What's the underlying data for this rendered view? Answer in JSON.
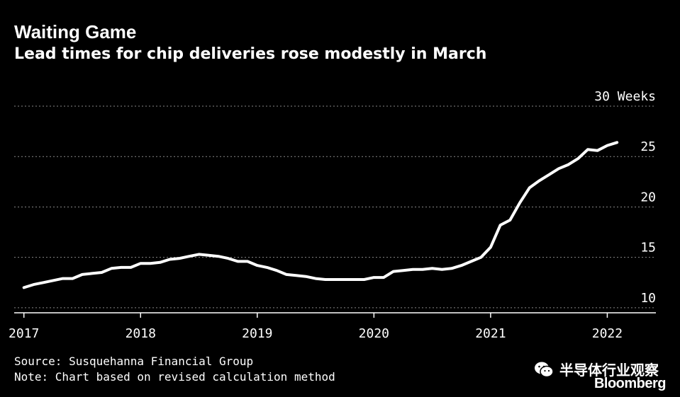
{
  "title": "Waiting Game",
  "subtitle": "Lead times for chip deliveries rose modestly in March",
  "source": "Source: Susquehanna Financial Group",
  "note": "Note: Chart based on revised calculation method",
  "watermark": "半导体行业观察",
  "brand": "Bloomberg",
  "colors": {
    "background": "#000000",
    "line": "#ffffff",
    "grid": "#888888"
  },
  "chart_data": {
    "type": "line",
    "title": "Waiting Game",
    "subtitle": "Lead times for chip deliveries rose modestly in March",
    "xlabel": "",
    "ylabel": "",
    "x_ticks": [
      "2017",
      "2018",
      "2019",
      "2020",
      "2021",
      "2022"
    ],
    "y_ticks": [
      10,
      15,
      20,
      25,
      30
    ],
    "y_tick_labels": [
      "10",
      "15",
      "20",
      "25",
      "30 Weeks"
    ],
    "ylim": [
      9.5,
      30
    ],
    "xlim": [
      "2016-12",
      "2022-06"
    ],
    "grid": "horizontal-dotted",
    "legend": "none",
    "series": [
      {
        "points": [
          [
            "2017-01",
            12.0
          ],
          [
            "2017-02",
            12.3
          ],
          [
            "2017-03",
            12.5
          ],
          [
            "2017-04",
            12.7
          ],
          [
            "2017-05",
            12.9
          ],
          [
            "2017-06",
            12.9
          ],
          [
            "2017-07",
            13.3
          ],
          [
            "2017-08",
            13.4
          ],
          [
            "2017-09",
            13.5
          ],
          [
            "2017-10",
            13.9
          ],
          [
            "2017-11",
            14.0
          ],
          [
            "2017-12",
            14.0
          ],
          [
            "2018-01",
            14.4
          ],
          [
            "2018-02",
            14.4
          ],
          [
            "2018-03",
            14.5
          ],
          [
            "2018-04",
            14.8
          ],
          [
            "2018-05",
            14.9
          ],
          [
            "2018-06",
            15.1
          ],
          [
            "2018-07",
            15.3
          ],
          [
            "2018-08",
            15.2
          ],
          [
            "2018-09",
            15.1
          ],
          [
            "2018-10",
            14.9
          ],
          [
            "2018-11",
            14.6
          ],
          [
            "2018-12",
            14.6
          ],
          [
            "2019-01",
            14.2
          ],
          [
            "2019-02",
            14.0
          ],
          [
            "2019-03",
            13.7
          ],
          [
            "2019-04",
            13.3
          ],
          [
            "2019-05",
            13.2
          ],
          [
            "2019-06",
            13.1
          ],
          [
            "2019-07",
            12.9
          ],
          [
            "2019-08",
            12.8
          ],
          [
            "2019-09",
            12.8
          ],
          [
            "2019-10",
            12.8
          ],
          [
            "2019-11",
            12.8
          ],
          [
            "2019-12",
            12.8
          ],
          [
            "2020-01",
            13.0
          ],
          [
            "2020-02",
            13.0
          ],
          [
            "2020-03",
            13.6
          ],
          [
            "2020-04",
            13.7
          ],
          [
            "2020-05",
            13.8
          ],
          [
            "2020-06",
            13.8
          ],
          [
            "2020-07",
            13.9
          ],
          [
            "2020-08",
            13.8
          ],
          [
            "2020-09",
            13.9
          ],
          [
            "2020-10",
            14.2
          ],
          [
            "2020-11",
            14.6
          ],
          [
            "2020-12",
            15.0
          ],
          [
            "2021-01",
            16.0
          ],
          [
            "2021-02",
            18.2
          ],
          [
            "2021-03",
            18.7
          ],
          [
            "2021-04",
            20.4
          ],
          [
            "2021-05",
            21.9
          ],
          [
            "2021-06",
            22.6
          ],
          [
            "2021-07",
            23.2
          ],
          [
            "2021-08",
            23.8
          ],
          [
            "2021-09",
            24.2
          ],
          [
            "2021-10",
            24.8
          ],
          [
            "2021-11",
            25.7
          ],
          [
            "2021-12",
            25.6
          ],
          [
            "2022-01",
            26.1
          ],
          [
            "2022-02",
            26.4
          ]
        ]
      }
    ]
  }
}
